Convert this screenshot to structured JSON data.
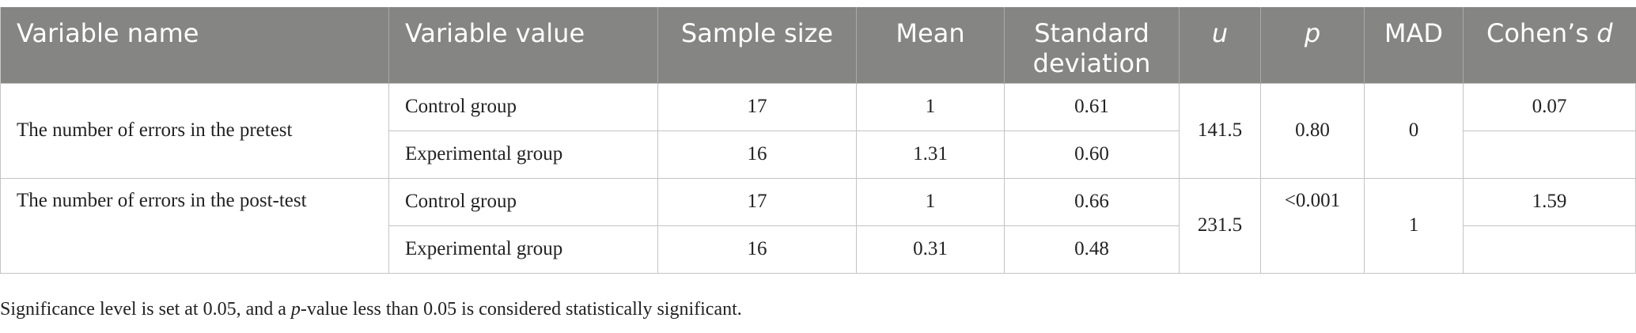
{
  "header": {
    "columns": [
      "Variable name",
      "Variable value",
      "Sample size",
      "Mean",
      "Standard deviation",
      "u",
      "p",
      "MAD",
      [
        "Cohen’s ",
        "d"
      ]
    ]
  },
  "groups": [
    {
      "name": "The number of errors in the pretest",
      "u": "141.5",
      "p": "0.80",
      "mad": "0",
      "rows": [
        {
          "value": "Control group",
          "n": "17",
          "mean": "1",
          "sd": "0.61",
          "d": "0.07"
        },
        {
          "value": "Experimental group",
          "n": "16",
          "mean": "1.31",
          "sd": "0.60"
        }
      ]
    },
    {
      "name": "The number of errors in the post-test",
      "u": "231.5",
      "p": "<0.001",
      "mad": "1",
      "rows": [
        {
          "value": "Control group",
          "n": "17",
          "mean": "1",
          "sd": "0.66",
          "d": "1.59"
        },
        {
          "value": "Experimental group",
          "n": "16",
          "mean": "0.31",
          "sd": "0.48"
        }
      ]
    }
  ],
  "footnote": [
    "Significance level is set at 0.05, and a ",
    "p",
    "-value less than 0.05 is considered statistically significant."
  ]
}
